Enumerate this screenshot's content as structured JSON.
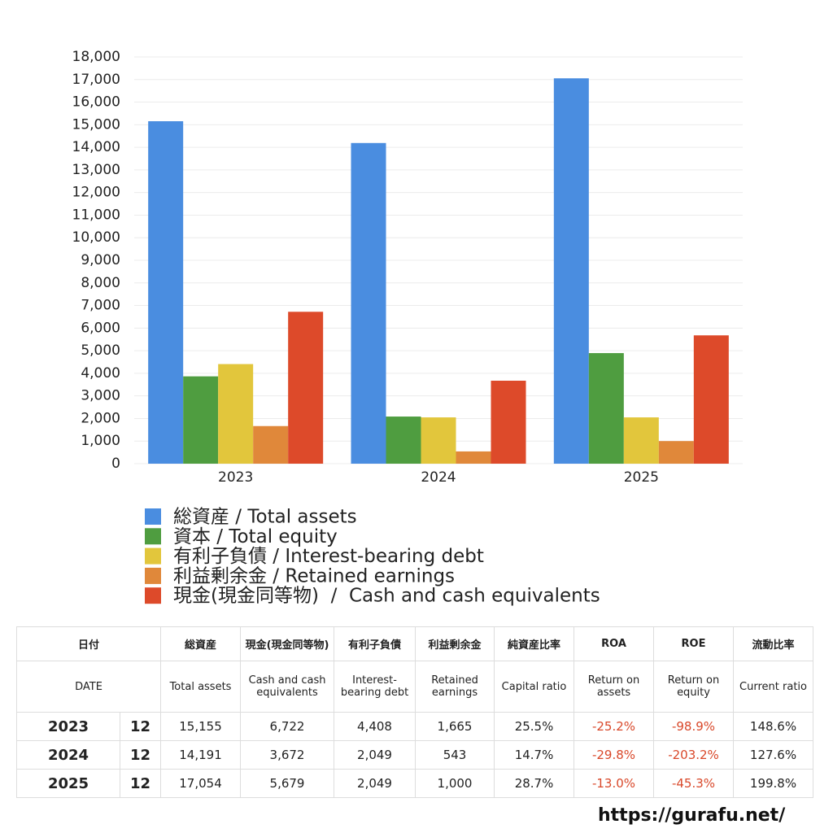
{
  "chart_data": {
    "type": "bar",
    "categories": [
      "2023",
      "2024",
      "2025"
    ],
    "series": [
      {
        "name": "総資産 / Total assets",
        "color": "#4a8de0",
        "values": [
          15155,
          14191,
          17054
        ]
      },
      {
        "name": "資本 / Total equity",
        "color": "#4f9d40",
        "values": [
          3865,
          2086,
          4894
        ]
      },
      {
        "name": "有利子負債 / Interest-bearing debt",
        "color": "#e2c63c",
        "values": [
          4408,
          2049,
          2049
        ]
      },
      {
        "name": "利益剰余金 / Retained earnings",
        "color": "#e0883a",
        "values": [
          1665,
          543,
          1000
        ]
      },
      {
        "name": "現金(現金同等物)  /  Cash and cash equivalents",
        "color": "#dd4a2a",
        "values": [
          6722,
          3672,
          5679
        ]
      }
    ],
    "ylim": [
      0,
      18000
    ],
    "yticks": [
      0,
      {
        "value": 1000,
        "label": "1,000"
      },
      {
        "value": 2000,
        "label": "2,000"
      },
      {
        "value": 3000,
        "label": "3,000"
      },
      {
        "value": 4000,
        "label": "4,000"
      },
      {
        "value": 5000,
        "label": "5,000"
      },
      {
        "value": 6000,
        "label": "6,000"
      },
      {
        "value": 7000,
        "label": "7,000"
      },
      {
        "value": 8000,
        "label": "8,000"
      },
      {
        "value": 9000,
        "label": "9,000"
      },
      {
        "value": 10000,
        "label": "10,000"
      },
      {
        "value": 11000,
        "label": "11,000"
      },
      {
        "value": 12000,
        "label": "12,000"
      },
      {
        "value": 13000,
        "label": "13,000"
      },
      {
        "value": 14000,
        "label": "14,000"
      },
      {
        "value": 15000,
        "label": "15,000"
      },
      {
        "value": 16000,
        "label": "16,000"
      },
      {
        "value": 17000,
        "label": "17,000"
      },
      {
        "value": 18000,
        "label": "18,000"
      }
    ],
    "grid": true,
    "legend": "bottom"
  },
  "table": {
    "header": [
      [
        "日付",
        "総資産",
        "現金(現金同等物)",
        "有利子負債",
        "利益剰余金",
        "純資産比率",
        "ROA",
        "ROE",
        "流動比率"
      ],
      [
        "DATE",
        "Total assets",
        "Cash and cash equivalents",
        "Interest-bearing debt",
        "Retained earnings",
        "Capital ratio",
        "Return on assets",
        "Return on equity",
        "Current ratio"
      ]
    ],
    "rows": [
      [
        "2023",
        "12",
        "15,155",
        "6,722",
        "4,408",
        "1,665",
        "25.5%",
        "-25.2%",
        "-98.9%",
        "148.6%"
      ],
      [
        "2024",
        "12",
        "14,191",
        "3,672",
        "2,049",
        "543",
        "14.7%",
        "-29.8%",
        "-203.2%",
        "127.6%"
      ],
      [
        "2025",
        "12",
        "17,054",
        "5,679",
        "2,049",
        "1,000",
        "28.7%",
        "-13.0%",
        "-45.3%",
        "199.8%"
      ]
    ]
  },
  "footer": {
    "url": "https://gurafu.net/"
  }
}
